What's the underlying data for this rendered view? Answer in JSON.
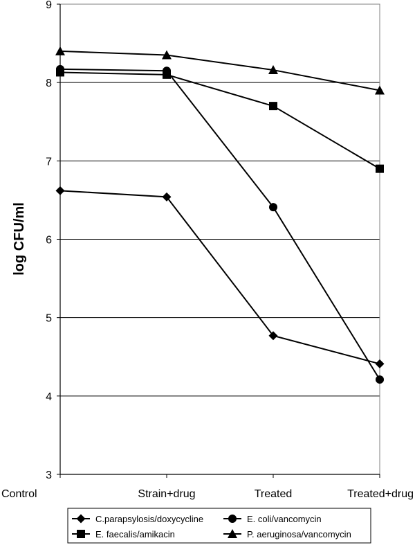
{
  "chart_data": {
    "type": "line",
    "ylabel": "log CFU/ml",
    "xlabel": "",
    "categories": [
      "Control",
      "Strain+drug",
      "Treated",
      "Treated+drug"
    ],
    "ylim": [
      3,
      9
    ],
    "yticks": [
      3,
      4,
      5,
      6,
      7,
      8,
      9
    ],
    "grid": "horizontal",
    "legend_position": "bottom",
    "series": [
      {
        "name": "C.parapsylosis/doxycycline",
        "marker": "diamond",
        "values": [
          6.62,
          6.54,
          4.77,
          4.41
        ]
      },
      {
        "name": "E. coli/vancomycin",
        "marker": "circle",
        "values": [
          8.17,
          8.15,
          6.41,
          4.21
        ]
      },
      {
        "name": "E. faecalis/amikacin",
        "marker": "square",
        "values": [
          8.13,
          8.1,
          7.7,
          6.9
        ]
      },
      {
        "name": "P. aeruginosa/vancomycin",
        "marker": "triangle",
        "values": [
          8.4,
          8.35,
          8.16,
          7.9
        ]
      }
    ],
    "colors": {
      "line": "#000000",
      "grid": "#000000",
      "plot_border": "#808080"
    }
  }
}
